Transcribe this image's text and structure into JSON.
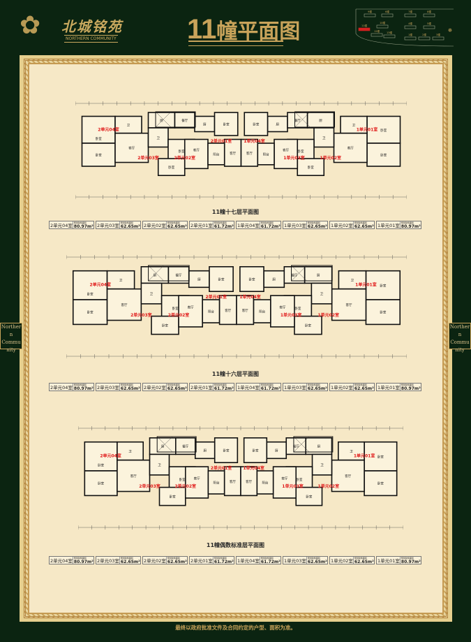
{
  "brand": {
    "name_cn": "北城铭苑",
    "name_en": "NORTHERN COMMUNITY"
  },
  "header": {
    "title_num": "11",
    "title_text": "幢平面图"
  },
  "site_map": {
    "buildings": [
      "9幢",
      "6幢",
      "7幢",
      "8幢",
      "11幢",
      "10幢",
      "4幢",
      "5幢",
      "12幢",
      "13幢",
      "1幢",
      "2幢",
      "3幢"
    ],
    "highlight": "11幢",
    "highlight_color": "#d42020"
  },
  "side_label": {
    "left": "Northern Community",
    "right": "Northern Community"
  },
  "colors": {
    "background": "#0b2411",
    "gold": "#c8a35a",
    "panel": "#f6e8c6",
    "unit_label": "#e01818"
  },
  "room_labels": [
    "卧室",
    "客厅",
    "厨",
    "卫",
    "阳台",
    "餐厅"
  ],
  "plans": [
    {
      "title": "11幢十七层平面图",
      "units": [
        "2单元04室",
        "2单元03室",
        "2单元02室",
        "2单元01室",
        "1单元04室",
        "1单元03室",
        "1单元02室",
        "1单元01室"
      ]
    },
    {
      "title": "11幢十六层平面图",
      "units": [
        "2单元04室",
        "2单元03室",
        "2单元02室",
        "2单元01室",
        "1单元04室",
        "1单元03室",
        "1单元02室",
        "1单元01室"
      ]
    },
    {
      "title": "11幢偶数标准层平面图",
      "units": [
        "2单元04室",
        "2单元03室",
        "2单元02室",
        "2单元01室",
        "1单元04室",
        "1单元03室",
        "1单元02室",
        "1单元01室"
      ]
    }
  ],
  "area_label": "预测建筑面积",
  "areas": [
    [
      {
        "unit": "2单元04室",
        "area": "80.97m²"
      },
      {
        "unit": "2单元03室",
        "area": "62.65m²"
      },
      {
        "unit": "2单元02室",
        "area": "62.65m²"
      },
      {
        "unit": "2单元01室",
        "area": "61.72m²"
      },
      {
        "unit": "1单元04室",
        "area": "61.72m²"
      },
      {
        "unit": "1单元03室",
        "area": "62.65m²"
      },
      {
        "unit": "1单元02室",
        "area": "62.65m²"
      },
      {
        "unit": "1单元01室",
        "area": "80.97m²"
      }
    ],
    [
      {
        "unit": "2单元04室",
        "area": "80.97m²"
      },
      {
        "unit": "2单元03室",
        "area": "62.65m²"
      },
      {
        "unit": "2单元02室",
        "area": "62.65m²"
      },
      {
        "unit": "2单元01室",
        "area": "61.72m²"
      },
      {
        "unit": "1单元04室",
        "area": "61.72m²"
      },
      {
        "unit": "1单元03室",
        "area": "62.65m²"
      },
      {
        "unit": "1单元02室",
        "area": "62.65m²"
      },
      {
        "unit": "1单元01室",
        "area": "80.97m²"
      }
    ],
    [
      {
        "unit": "2单元04室",
        "area": "80.97m²"
      },
      {
        "unit": "2单元03室",
        "area": "62.65m²"
      },
      {
        "unit": "2单元02室",
        "area": "62.65m²"
      },
      {
        "unit": "2单元01室",
        "area": "61.72m²"
      },
      {
        "unit": "1单元04室",
        "area": "61.72m²"
      },
      {
        "unit": "1单元03室",
        "area": "62.65m²"
      },
      {
        "unit": "1单元02室",
        "area": "62.65m²"
      },
      {
        "unit": "1单元01室",
        "area": "80.97m²"
      }
    ]
  ],
  "footer": "最终以政府批准文件及合同约定的户型、面积为准。"
}
